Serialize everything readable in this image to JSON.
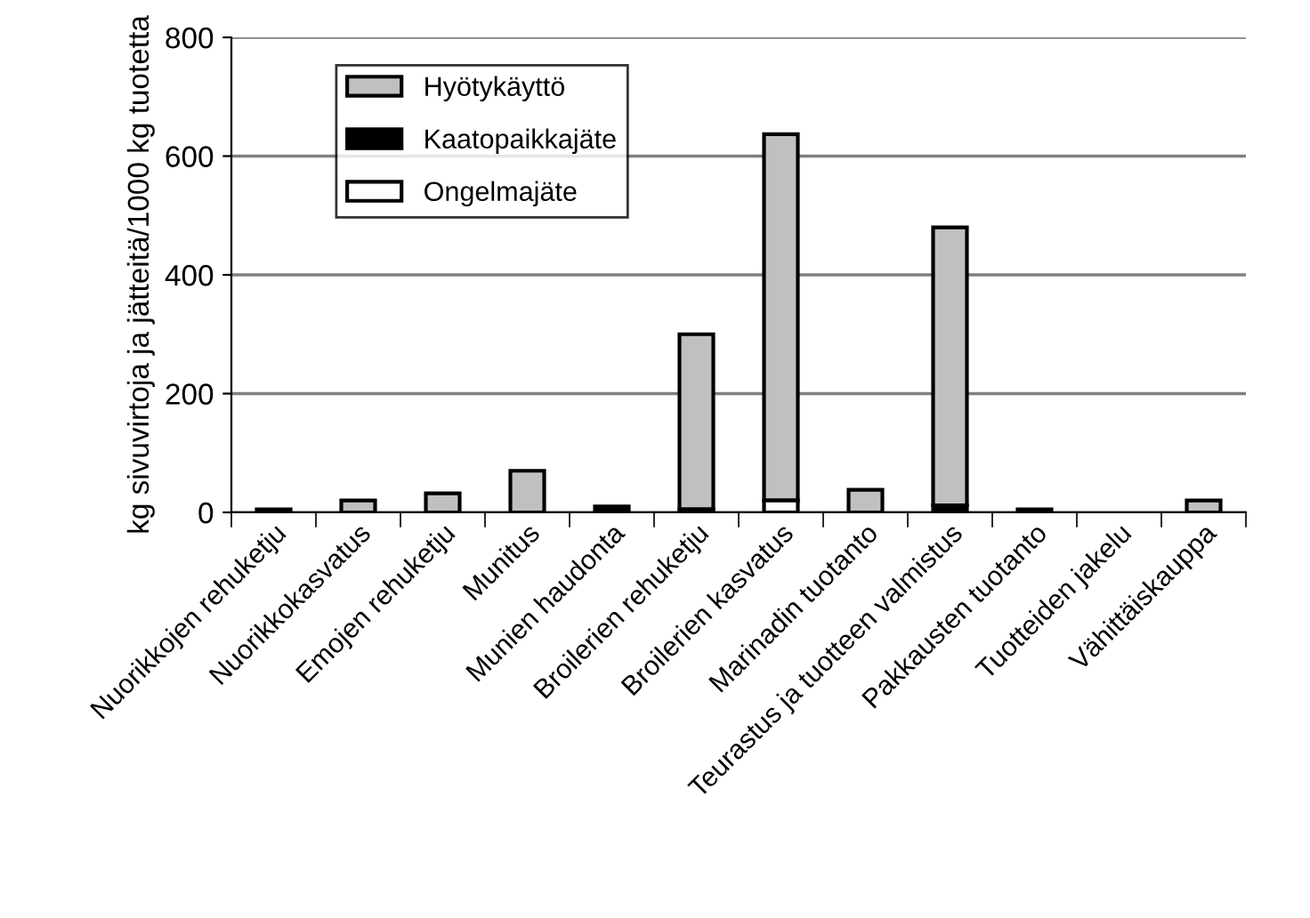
{
  "chart_data": {
    "type": "bar",
    "stacked": true,
    "ylabel": "kg sivuvirtoja ja jätteitä/1000 kg tuotetta",
    "categories": [
      "Nuorikkojen rehuketju",
      "Nuorikkokasvatus",
      "Emojen rehuketju",
      "Munitus",
      "Munien haudonta",
      "Broilerien rehuketju",
      "Broilerien kasvatus",
      "Marinadin tuotanto",
      "Teurastus ja tuotteen valmistus",
      "Pakkausten tuotanto",
      "Tuotteiden jakelu",
      "Vähittäiskauppa"
    ],
    "series": [
      {
        "name": "Ongelmajäte",
        "color": "#ffffff",
        "values": [
          null,
          null,
          null,
          null,
          null,
          null,
          20,
          null,
          null,
          null,
          null,
          null
        ]
      },
      {
        "name": "Kaatopaikkajäte",
        "color": "#000000",
        "values": [
          5,
          null,
          null,
          null,
          10,
          5,
          null,
          null,
          12,
          5,
          null,
          null
        ]
      },
      {
        "name": "Hyötykäyttö",
        "color": "#c0c0c0",
        "values": [
          null,
          20,
          32,
          70,
          null,
          295,
          617,
          38,
          468,
          null,
          null,
          20
        ]
      }
    ],
    "ylim": [
      0,
      800
    ],
    "yticks": [
      0,
      200,
      400,
      600,
      800
    ],
    "grid": "y",
    "legend": "top left"
  }
}
